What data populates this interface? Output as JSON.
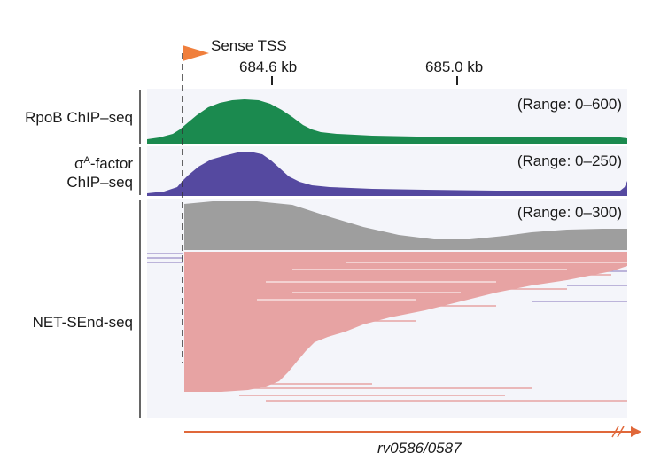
{
  "tss": {
    "label": "Sense TSS",
    "color": "#f07f3c"
  },
  "axis": {
    "ticks": [
      "684.6 kb",
      "685.0 kb"
    ]
  },
  "tracks": [
    {
      "id": "rpob",
      "label": "RpoB ChIP–seq",
      "range": "(Range: 0–600)",
      "color": "#1b8a4f"
    },
    {
      "id": "sigma",
      "label_prefix": "σ",
      "label_sup": "A",
      "label_suffix": "-factor",
      "label_line2": "ChIP–seq",
      "range": "(Range: 0–250)",
      "color": "#5549a0"
    },
    {
      "id": "net",
      "label": "NET-SEnd-seq",
      "range": "(Range: 0–300)",
      "color": "#9e9e9e",
      "reads_color": "#e7a3a3",
      "antisense_color": "#a99fcf"
    }
  ],
  "gene": {
    "label": "rv0586/0587",
    "color": "#e0683a"
  }
}
